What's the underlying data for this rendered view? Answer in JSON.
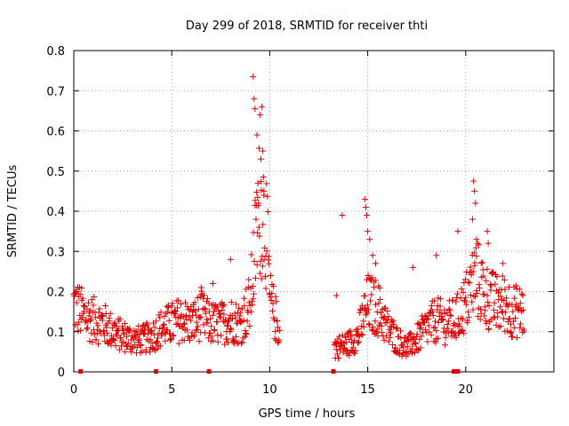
{
  "chart_data": {
    "type": "scatter",
    "title": "Day 299 of 2018, SRMTID for receiver thti",
    "xlabel": "GPS time / hours",
    "ylabel": "SRMTID / TECUs",
    "xlim": [
      0,
      24.5
    ],
    "ylim": [
      0,
      0.8
    ],
    "x_ticks": [
      0,
      5,
      10,
      15,
      20
    ],
    "x_tick_labels": [
      "0",
      "5",
      "10",
      "15",
      "20"
    ],
    "y_ticks": [
      0,
      0.1,
      0.2,
      0.3,
      0.4,
      0.5,
      0.6,
      0.7,
      0.8
    ],
    "y_tick_labels": [
      "0",
      "0.1",
      "0.2",
      "0.3",
      "0.4",
      "0.5",
      "0.6",
      "0.7",
      "0.8"
    ],
    "grid": true,
    "marker": "plus",
    "color": "#e00000",
    "series_profile": [
      [
        0.0,
        0.17
      ],
      [
        0.5,
        0.14
      ],
      [
        1.0,
        0.13
      ],
      [
        1.5,
        0.12
      ],
      [
        2.0,
        0.1
      ],
      [
        2.5,
        0.09
      ],
      [
        3.0,
        0.08
      ],
      [
        3.5,
        0.08
      ],
      [
        4.0,
        0.09
      ],
      [
        4.5,
        0.11
      ],
      [
        5.0,
        0.12
      ],
      [
        5.5,
        0.13
      ],
      [
        6.0,
        0.12
      ],
      [
        6.5,
        0.14
      ],
      [
        7.0,
        0.12
      ],
      [
        7.5,
        0.12
      ],
      [
        8.0,
        0.13
      ],
      [
        8.5,
        0.12
      ],
      [
        9.0,
        0.17
      ],
      [
        9.3,
        0.33
      ],
      [
        9.5,
        0.42
      ],
      [
        9.8,
        0.38
      ],
      [
        10.0,
        0.18
      ],
      [
        10.5,
        0.1
      ]
    ],
    "series_profile_2": [
      [
        13.3,
        0.06
      ],
      [
        14.0,
        0.07
      ],
      [
        14.5,
        0.09
      ],
      [
        15.0,
        0.17
      ],
      [
        15.5,
        0.16
      ],
      [
        16.0,
        0.11
      ],
      [
        16.5,
        0.08
      ],
      [
        17.0,
        0.06
      ],
      [
        17.5,
        0.08
      ],
      [
        18.0,
        0.11
      ],
      [
        18.5,
        0.13
      ],
      [
        19.0,
        0.12
      ],
      [
        19.5,
        0.13
      ],
      [
        20.0,
        0.17
      ],
      [
        20.5,
        0.24
      ],
      [
        21.0,
        0.19
      ],
      [
        21.5,
        0.17
      ],
      [
        22.0,
        0.17
      ],
      [
        22.5,
        0.15
      ],
      [
        23.0,
        0.15
      ]
    ],
    "peaks": [
      {
        "x": 9.15,
        "y": 0.735
      },
      {
        "x": 9.2,
        "y": 0.68
      },
      {
        "x": 9.25,
        "y": 0.655
      },
      {
        "x": 9.35,
        "y": 0.59
      },
      {
        "x": 9.5,
        "y": 0.64
      },
      {
        "x": 9.6,
        "y": 0.66
      },
      {
        "x": 9.65,
        "y": 0.55
      },
      {
        "x": 9.4,
        "y": 0.47
      },
      {
        "x": 9.55,
        "y": 0.53
      },
      {
        "x": 9.3,
        "y": 0.38
      },
      {
        "x": 9.7,
        "y": 0.44
      },
      {
        "x": 9.45,
        "y": 0.36
      },
      {
        "x": 14.85,
        "y": 0.43
      },
      {
        "x": 14.9,
        "y": 0.41
      },
      {
        "x": 14.95,
        "y": 0.39
      },
      {
        "x": 13.7,
        "y": 0.39
      },
      {
        "x": 15.0,
        "y": 0.35
      },
      {
        "x": 15.1,
        "y": 0.33
      },
      {
        "x": 15.25,
        "y": 0.29
      },
      {
        "x": 15.4,
        "y": 0.27
      },
      {
        "x": 13.4,
        "y": 0.19
      },
      {
        "x": 20.4,
        "y": 0.475
      },
      {
        "x": 20.45,
        "y": 0.45
      },
      {
        "x": 20.5,
        "y": 0.42
      },
      {
        "x": 20.35,
        "y": 0.38
      },
      {
        "x": 20.55,
        "y": 0.33
      },
      {
        "x": 21.1,
        "y": 0.35
      },
      {
        "x": 21.15,
        "y": 0.32
      },
      {
        "x": 19.6,
        "y": 0.35
      },
      {
        "x": 18.5,
        "y": 0.29
      },
      {
        "x": 17.3,
        "y": 0.26
      },
      {
        "x": 21.9,
        "y": 0.27
      },
      {
        "x": 8.0,
        "y": 0.28
      },
      {
        "x": 7.1,
        "y": 0.22
      },
      {
        "x": 6.5,
        "y": 0.21
      }
    ],
    "zero_markers": [
      0.35,
      4.2,
      6.9,
      13.25,
      19.4,
      19.5,
      19.6
    ]
  }
}
